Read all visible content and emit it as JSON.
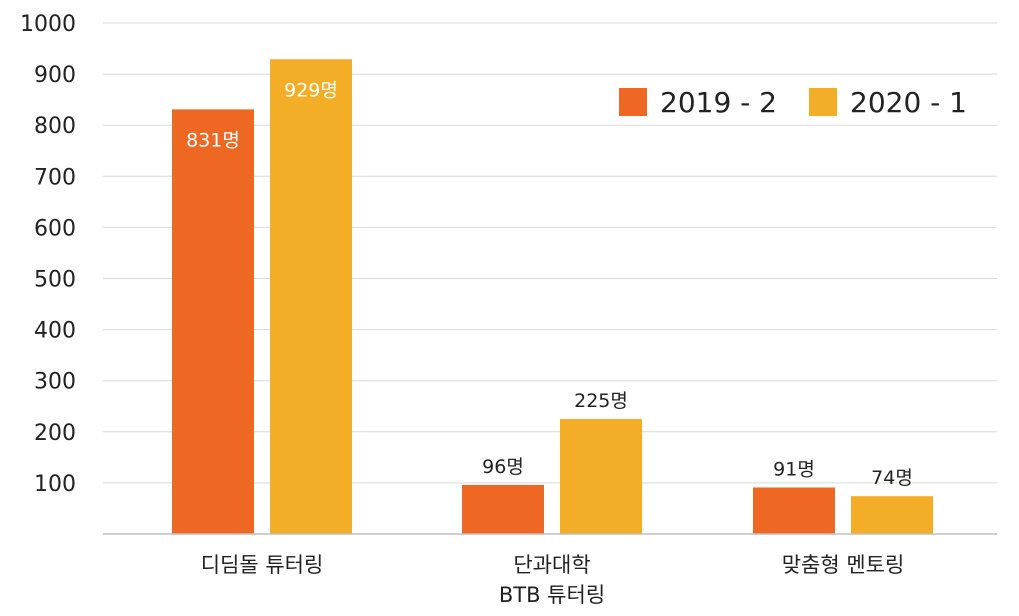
{
  "chart_data": {
    "type": "bar",
    "categories": [
      {
        "lines": [
          "디딤돌 튜터링"
        ]
      },
      {
        "lines": [
          "단과대학",
          "BTB 튜터링"
        ]
      },
      {
        "lines": [
          "맞춤형 멘토링"
        ]
      }
    ],
    "series": [
      {
        "name": "2019 - 2",
        "color": "#EE6723",
        "values": [
          831,
          96,
          91
        ],
        "labels": [
          "831명",
          "96명",
          "91명"
        ]
      },
      {
        "name": "2020 - 1",
        "color": "#F3AD27",
        "values": [
          929,
          225,
          74
        ],
        "labels": [
          "929명",
          "225명",
          "74명"
        ]
      }
    ],
    "y_ticks": [
      "100",
      "200",
      "300",
      "400",
      "500",
      "600",
      "700",
      "800",
      "900",
      "1000"
    ],
    "ylim": [
      0,
      1000
    ],
    "grid": true,
    "legend_position": "top-right"
  }
}
